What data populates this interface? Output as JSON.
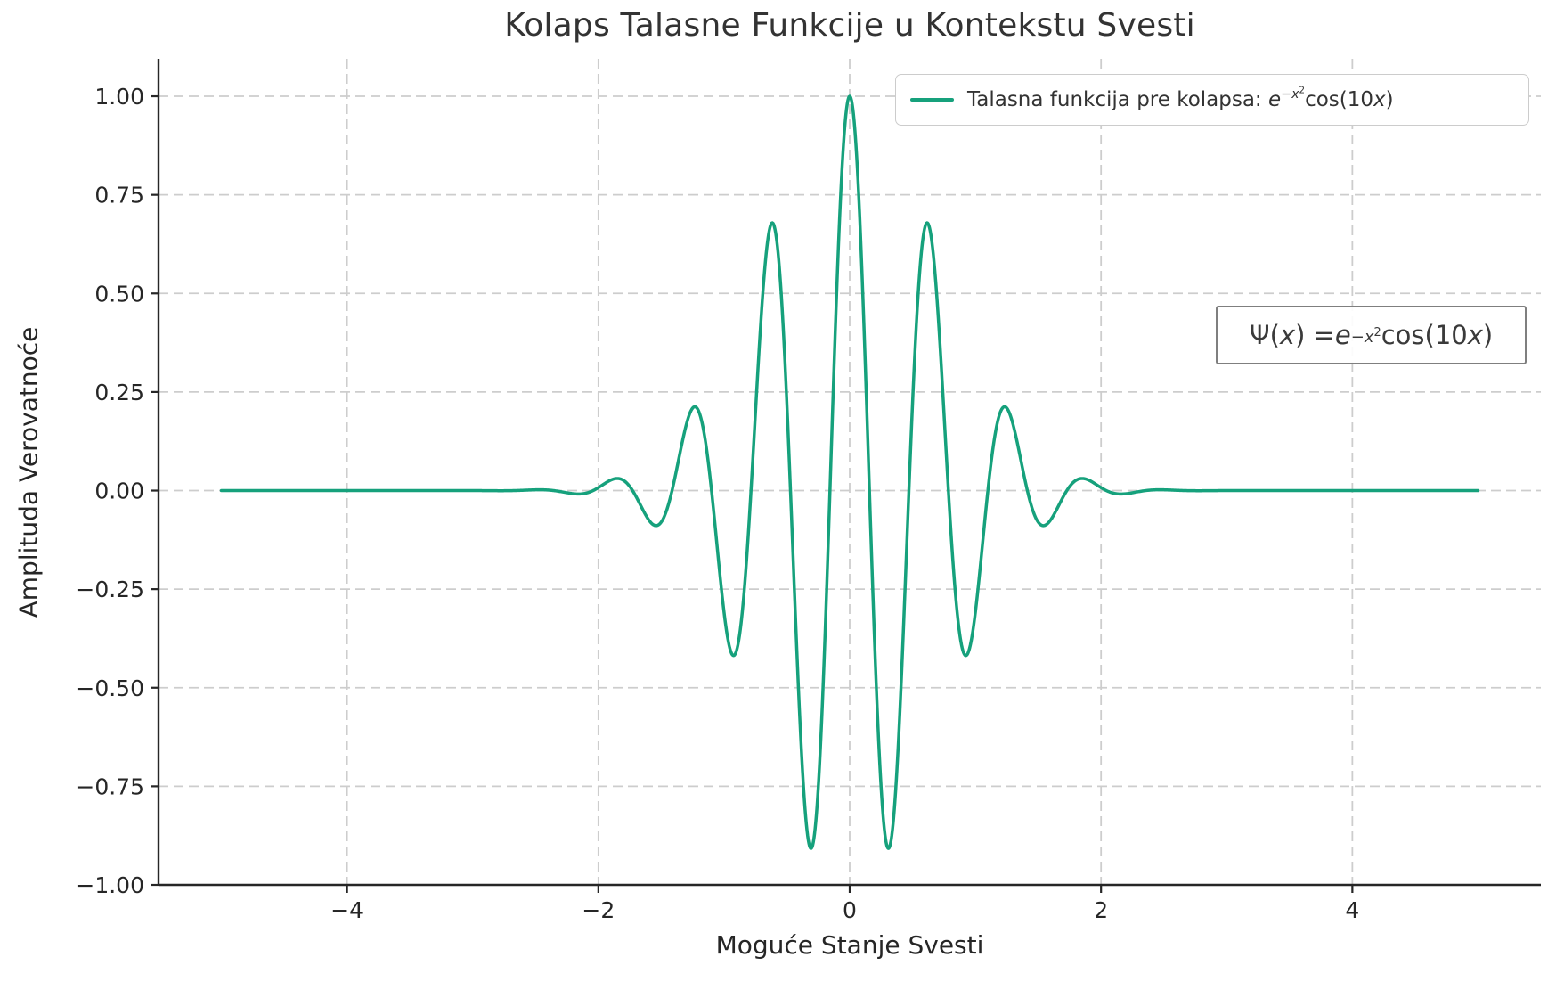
{
  "title": "Kolaps Talasne Funkcije u Kontekstu Svesti",
  "axes": {
    "xlabel": "Moguće Stanje Svesti",
    "ylabel": "Amplituda Verovatnoće",
    "x_ticks": {
      "values": [
        -4,
        -2,
        0,
        2,
        4
      ],
      "labels": [
        "−4",
        "−2",
        "0",
        "2",
        "4"
      ]
    },
    "y_ticks": {
      "values": [
        -1.0,
        -0.75,
        -0.5,
        -0.25,
        0.0,
        0.25,
        0.5,
        0.75,
        1.0
      ],
      "labels": [
        "−1.00",
        "−0.75",
        "−0.50",
        "−0.25",
        "0.00",
        "0.25",
        "0.50",
        "0.75",
        "1.00"
      ]
    },
    "xlim": [
      -5.5,
      5.5
    ],
    "ylim": [
      -1.0,
      1.095
    ],
    "grid": "dashed"
  },
  "legend": {
    "position": "upper right",
    "prefix": "Talasna funkcija pre kolapsa: "
  },
  "annotation": {
    "prefix": "Ψ(",
    "var": "x",
    "equals": ") = "
  },
  "formula": {
    "base": "e",
    "exp": "−x",
    "exp_power": "2",
    "cos_open": "cos(10",
    "var": "x",
    "close": ")"
  },
  "colors": {
    "curve": "#16a17c",
    "grid": "#cdcdcd",
    "spine": "#262626",
    "tick_text": "#262626",
    "title_text": "#333333",
    "legend_border": "#cccccc",
    "annotation_border": "#7f7f7f"
  },
  "chart_data": {
    "type": "line",
    "title": "Kolaps Talasne Funkcije u Kontekstu Svesti",
    "xlabel": "Moguće Stanje Svesti",
    "ylabel": "Amplituda Verovatnoće",
    "xlim": [
      -5.5,
      5.5
    ],
    "ylim": [
      -1.0,
      1.095
    ],
    "grid": true,
    "legend_position": "upper right",
    "series": [
      {
        "name": "Talasna funkcija pre kolapsa: e^(−x²)cos(10x)",
        "kind": "gauss_cos",
        "formula": "exp(-x^2)*cos(10*x)",
        "frequency": 10,
        "x_min": -5,
        "x_max": 5,
        "samples": 2001,
        "color": "#16a17c",
        "line_width": 3.5
      }
    ],
    "key_points": [
      {
        "x": 0.0,
        "y": 1.0
      },
      {
        "x": -0.314,
        "y": -0.906
      },
      {
        "x": 0.314,
        "y": -0.906
      },
      {
        "x": -0.628,
        "y": 0.674
      },
      {
        "x": 0.628,
        "y": 0.674
      },
      {
        "x": -0.942,
        "y": -0.412
      },
      {
        "x": 0.942,
        "y": -0.412
      },
      {
        "x": -1.257,
        "y": 0.206
      },
      {
        "x": 1.257,
        "y": 0.206
      },
      {
        "x": -1.571,
        "y": -0.085
      },
      {
        "x": 1.571,
        "y": -0.085
      },
      {
        "x": -1.885,
        "y": 0.029
      },
      {
        "x": 1.885,
        "y": 0.029
      },
      {
        "x": -5.0,
        "y": 0.0
      },
      {
        "x": 5.0,
        "y": 0.0
      }
    ]
  }
}
